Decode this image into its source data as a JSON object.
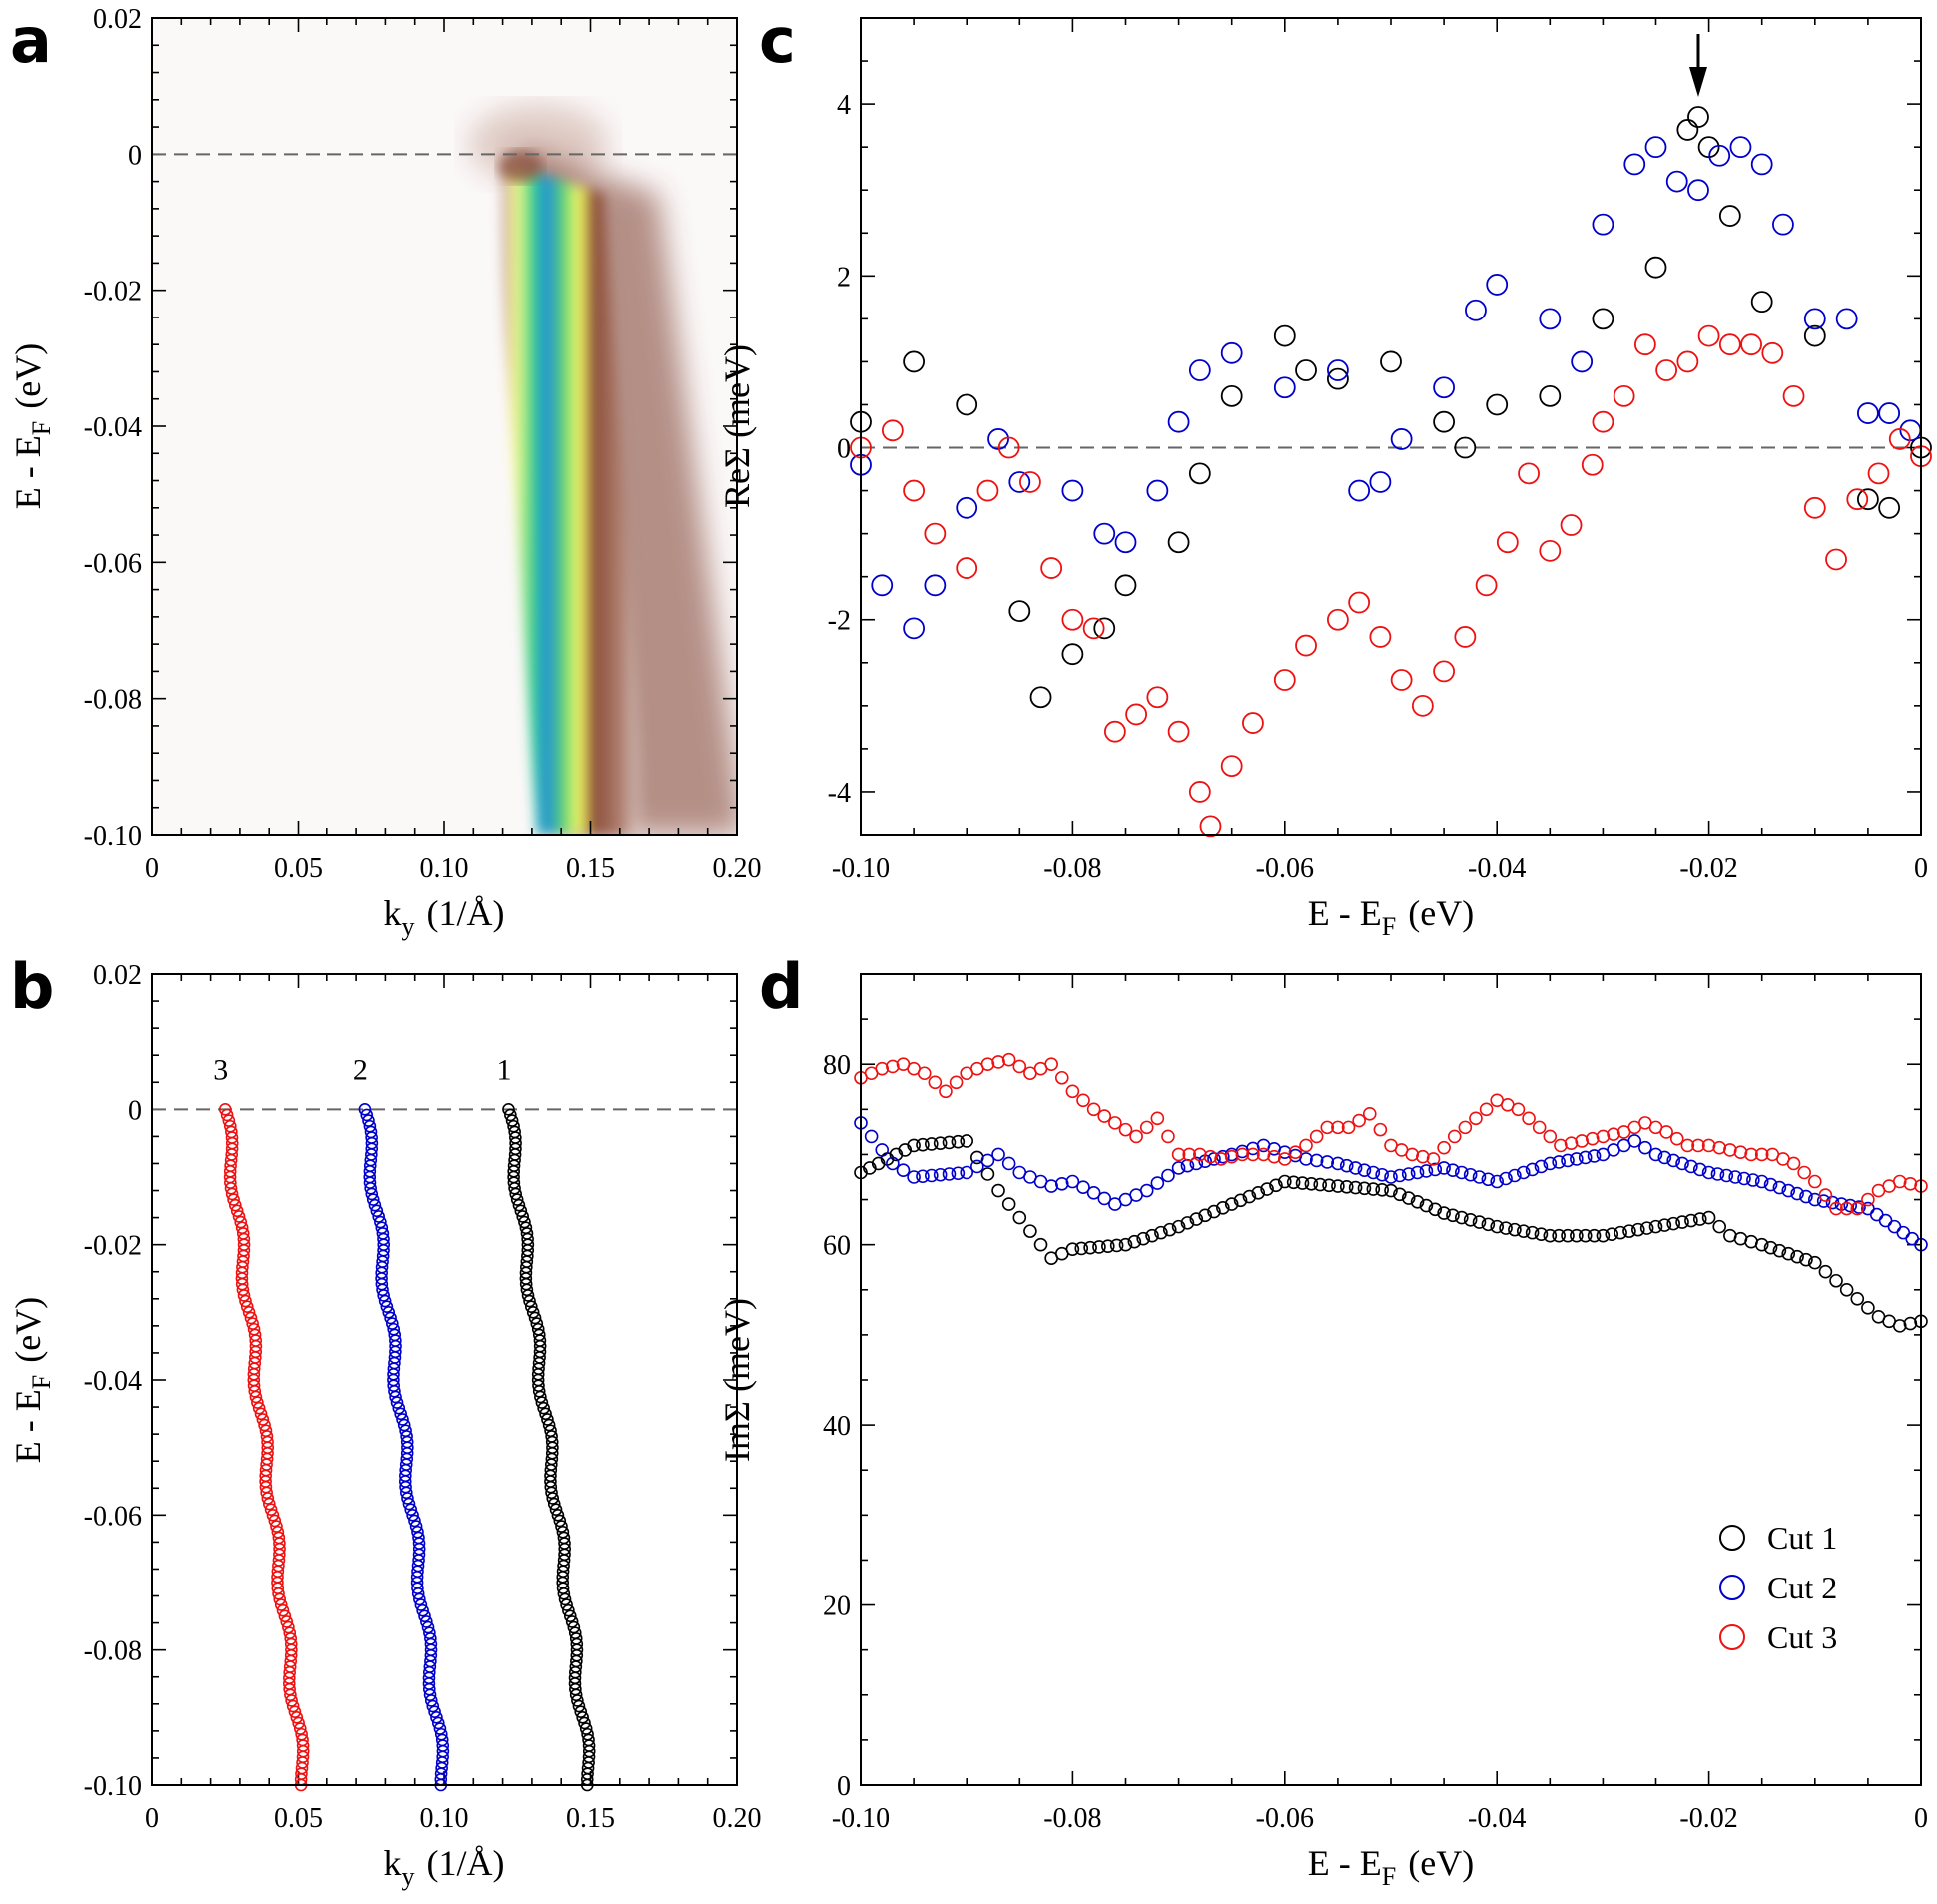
{
  "colors": {
    "cut1": "#000000",
    "cut2": "#0000cc",
    "cut3": "#ee1111"
  },
  "chart_data": [
    {
      "panel": "a",
      "type": "heatmap",
      "xlabel_main": "k",
      "xlabel_sub": "y",
      "xlabel_unit": "(1/Å)",
      "ylabel_main": "E - E",
      "ylabel_sub": "F",
      "ylabel_unit": "(eV)",
      "xlim": [
        0,
        0.2
      ],
      "ylim": [
        -0.1,
        0.02
      ],
      "xticks": [
        "0",
        "0.05",
        "0.10",
        "0.15",
        "0.20"
      ],
      "yticks": [
        "0.02",
        "0",
        "-0.02",
        "-0.04",
        "-0.06",
        "-0.08",
        "-0.10"
      ],
      "band": {
        "k_at_EF": 0.122,
        "k_at_bottom": 0.148,
        "E_top": 0.0,
        "E_bottom": -0.1
      },
      "colormap": [
        "#ffffff",
        "#7a3b2a",
        "#ffff99",
        "#33cc77",
        "#2277ff"
      ]
    },
    {
      "panel": "b",
      "type": "scatter",
      "xlabel_main": "k",
      "xlabel_sub": "y",
      "xlabel_unit": "(1/Å)",
      "ylabel_main": "E - E",
      "ylabel_sub": "F",
      "ylabel_unit": "(eV)",
      "xlim": [
        0,
        0.2
      ],
      "ylim": [
        -0.1,
        0.02
      ],
      "xticks": [
        "0",
        "0.05",
        "0.10",
        "0.15",
        "0.20"
      ],
      "yticks": [
        "0.02",
        "0",
        "-0.02",
        "-0.04",
        "-0.06",
        "-0.08",
        "-0.10"
      ],
      "series": [
        {
          "name": "1",
          "k_at_EF": 0.122,
          "k_at_bottom": 0.15
        },
        {
          "name": "2",
          "k_at_EF": 0.073,
          "k_at_bottom": 0.1
        },
        {
          "name": "3",
          "k_at_EF": 0.025,
          "k_at_bottom": 0.052
        }
      ]
    },
    {
      "panel": "c",
      "type": "scatter",
      "xlabel_main": "E - E",
      "xlabel_sub": "F",
      "xlabel_unit": "(eV)",
      "ylabel": "ReΣ (meV)",
      "xlim": [
        -0.1,
        0
      ],
      "ylim": [
        -4.5,
        5.0
      ],
      "xticks": [
        "-0.10",
        "-0.08",
        "-0.06",
        "-0.04",
        "-0.02",
        "0"
      ],
      "yticks": [
        "-4",
        "-2",
        "0",
        "2",
        "4"
      ],
      "arrow_at": {
        "x": -0.021,
        "y": 3.85
      },
      "series": [
        {
          "name": "Cut 1",
          "x": [
            -0.1,
            -0.095,
            -0.09,
            -0.085,
            -0.083,
            -0.08,
            -0.077,
            -0.075,
            -0.07,
            -0.068,
            -0.065,
            -0.06,
            -0.058,
            -0.055,
            -0.05,
            -0.045,
            -0.043,
            -0.04,
            -0.035,
            -0.03,
            -0.025,
            -0.022,
            -0.021,
            -0.02,
            -0.018,
            -0.015,
            -0.01,
            -0.005,
            -0.003,
            0
          ],
          "y": [
            0.3,
            1.0,
            0.5,
            -1.9,
            -2.9,
            -2.4,
            -2.1,
            -1.6,
            -1.1,
            -0.3,
            0.6,
            1.3,
            0.9,
            0.8,
            1.0,
            0.3,
            0.0,
            0.5,
            0.6,
            1.5,
            2.1,
            3.7,
            3.85,
            3.5,
            2.7,
            1.7,
            1.3,
            -0.6,
            -0.7,
            0.0
          ]
        },
        {
          "name": "Cut 2",
          "x": [
            -0.1,
            -0.098,
            -0.095,
            -0.093,
            -0.09,
            -0.087,
            -0.085,
            -0.08,
            -0.077,
            -0.075,
            -0.072,
            -0.07,
            -0.068,
            -0.065,
            -0.06,
            -0.055,
            -0.053,
            -0.051,
            -0.049,
            -0.045,
            -0.042,
            -0.04,
            -0.035,
            -0.032,
            -0.03,
            -0.027,
            -0.025,
            -0.023,
            -0.021,
            -0.019,
            -0.017,
            -0.015,
            -0.013,
            -0.01,
            -0.007,
            -0.005,
            -0.003,
            -0.001
          ],
          "y": [
            -0.2,
            -1.6,
            -2.1,
            -1.6,
            -0.7,
            0.1,
            -0.4,
            -0.5,
            -1.0,
            -1.1,
            -0.5,
            0.3,
            0.9,
            1.1,
            0.7,
            0.9,
            -0.5,
            -0.4,
            0.1,
            0.7,
            1.6,
            1.9,
            1.5,
            1.0,
            2.6,
            3.3,
            3.5,
            3.1,
            3.0,
            3.4,
            3.5,
            3.3,
            2.6,
            1.5,
            1.5,
            0.4,
            0.4,
            0.2
          ]
        },
        {
          "name": "Cut 3",
          "x": [
            -0.1,
            -0.097,
            -0.095,
            -0.093,
            -0.09,
            -0.088,
            -0.086,
            -0.084,
            -0.082,
            -0.08,
            -0.078,
            -0.076,
            -0.074,
            -0.072,
            -0.07,
            -0.068,
            -0.067,
            -0.065,
            -0.063,
            -0.06,
            -0.058,
            -0.055,
            -0.053,
            -0.051,
            -0.049,
            -0.047,
            -0.045,
            -0.043,
            -0.041,
            -0.039,
            -0.037,
            -0.035,
            -0.033,
            -0.031,
            -0.03,
            -0.028,
            -0.026,
            -0.024,
            -0.022,
            -0.02,
            -0.018,
            -0.016,
            -0.014,
            -0.012,
            -0.01,
            -0.008,
            -0.006,
            -0.004,
            -0.002,
            0
          ],
          "y": [
            0.0,
            0.2,
            -0.5,
            -1.0,
            -1.4,
            -0.5,
            0.0,
            -0.4,
            -1.4,
            -2.0,
            -2.1,
            -3.3,
            -3.1,
            -2.9,
            -3.3,
            -4.0,
            -4.4,
            -3.7,
            -3.2,
            -2.7,
            -2.3,
            -2.0,
            -1.8,
            -2.2,
            -2.7,
            -3.0,
            -2.6,
            -2.2,
            -1.6,
            -1.1,
            -0.3,
            -1.2,
            -0.9,
            -0.2,
            0.3,
            0.6,
            1.2,
            0.9,
            1.0,
            1.3,
            1.2,
            1.2,
            1.1,
            0.6,
            -0.7,
            -1.3,
            -0.6,
            -0.3,
            0.1,
            -0.1
          ]
        }
      ]
    },
    {
      "panel": "d",
      "type": "scatter",
      "xlabel_main": "E - E",
      "xlabel_sub": "F",
      "xlabel_unit": "(eV)",
      "ylabel": "ImΣ (meV)",
      "xlim": [
        -0.1,
        0
      ],
      "ylim": [
        0,
        90
      ],
      "xticks": [
        "-0.10",
        "-0.08",
        "-0.06",
        "-0.04",
        "-0.02",
        "0"
      ],
      "yticks": [
        "0",
        "20",
        "40",
        "60",
        "80"
      ],
      "legend_position": "bottom-right",
      "series": [
        {
          "name": "Cut 1",
          "x": [
            -0.1,
            -0.095,
            -0.09,
            -0.087,
            -0.085,
            -0.083,
            -0.082,
            -0.08,
            -0.075,
            -0.07,
            -0.065,
            -0.06,
            -0.055,
            -0.05,
            -0.045,
            -0.04,
            -0.035,
            -0.03,
            -0.025,
            -0.02,
            -0.018,
            -0.015,
            -0.01,
            -0.007,
            -0.004,
            -0.002,
            0
          ],
          "y": [
            68,
            71,
            71.5,
            66,
            63,
            60,
            58.5,
            59.5,
            60,
            62,
            64.5,
            67,
            66.5,
            66,
            63.5,
            62,
            61,
            61,
            62,
            63,
            61,
            60,
            58,
            55,
            52,
            51,
            51.5
          ]
        },
        {
          "name": "Cut 2",
          "x": [
            -0.1,
            -0.097,
            -0.095,
            -0.09,
            -0.087,
            -0.085,
            -0.082,
            -0.08,
            -0.076,
            -0.073,
            -0.07,
            -0.065,
            -0.062,
            -0.058,
            -0.055,
            -0.05,
            -0.045,
            -0.04,
            -0.035,
            -0.03,
            -0.027,
            -0.025,
            -0.02,
            -0.015,
            -0.01,
            -0.005,
            0
          ],
          "y": [
            73.5,
            69,
            67.5,
            68,
            70,
            68,
            66.5,
            67,
            64.5,
            66,
            68.5,
            70,
            71,
            69.5,
            69,
            67.5,
            68.5,
            67,
            69,
            70,
            71.5,
            70,
            68,
            67,
            65,
            64,
            60
          ]
        },
        {
          "name": "Cut 3",
          "x": [
            -0.1,
            -0.098,
            -0.096,
            -0.094,
            -0.092,
            -0.09,
            -0.088,
            -0.086,
            -0.084,
            -0.082,
            -0.08,
            -0.078,
            -0.076,
            -0.074,
            -0.072,
            -0.07,
            -0.068,
            -0.066,
            -0.064,
            -0.062,
            -0.06,
            -0.058,
            -0.056,
            -0.054,
            -0.052,
            -0.05,
            -0.048,
            -0.046,
            -0.044,
            -0.042,
            -0.04,
            -0.038,
            -0.036,
            -0.034,
            -0.032,
            -0.03,
            -0.028,
            -0.026,
            -0.024,
            -0.022,
            -0.02,
            -0.018,
            -0.016,
            -0.014,
            -0.012,
            -0.01,
            -0.008,
            -0.006,
            -0.004,
            -0.002,
            0
          ],
          "y": [
            78.5,
            79.5,
            80,
            79,
            77,
            79,
            80,
            80.5,
            79,
            80,
            77,
            75,
            73.5,
            72,
            74,
            70,
            70,
            69.5,
            70,
            70,
            69.5,
            71,
            73,
            73,
            74.5,
            71,
            70,
            69.5,
            72,
            74,
            76,
            75,
            73,
            71,
            71.5,
            72,
            72.5,
            73.5,
            72.5,
            71,
            71,
            70.5,
            70,
            70,
            69,
            67,
            64,
            64,
            66,
            67,
            66.5
          ]
        }
      ]
    }
  ]
}
